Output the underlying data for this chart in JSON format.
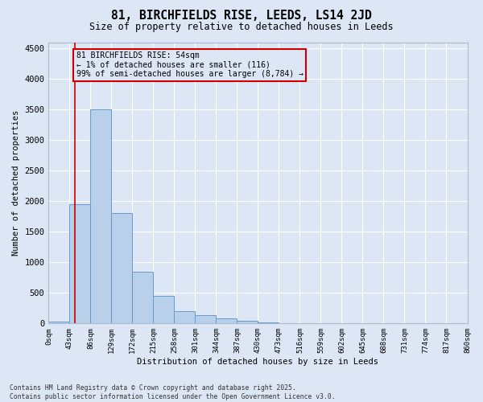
{
  "title_line1": "81, BIRCHFIELDS RISE, LEEDS, LS14 2JD",
  "title_line2": "Size of property relative to detached houses in Leeds",
  "xlabel": "Distribution of detached houses by size in Leeds",
  "ylabel": "Number of detached properties",
  "bar_color": "#b8d0ea",
  "bar_edge_color": "#6699cc",
  "background_color": "#dce6f5",
  "grid_color": "#ffffff",
  "annotation_box_color": "#cc0000",
  "annotation_line_color": "#cc0000",
  "property_line_x": 54,
  "annotation_text_line1": "81 BIRCHFIELDS RISE: 54sqm",
  "annotation_text_line2": "← 1% of detached houses are smaller (116)",
  "annotation_text_line3": "99% of semi-detached houses are larger (8,784) →",
  "footer_line1": "Contains HM Land Registry data © Crown copyright and database right 2025.",
  "footer_line2": "Contains public sector information licensed under the Open Government Licence v3.0.",
  "bin_edges": [
    0,
    43,
    86,
    129,
    172,
    215,
    258,
    301,
    344,
    387,
    430,
    473,
    516,
    559,
    602,
    645,
    688,
    731,
    774,
    817,
    860
  ],
  "bin_labels": [
    "0sqm",
    "43sqm",
    "86sqm",
    "129sqm",
    "172sqm",
    "215sqm",
    "258sqm",
    "301sqm",
    "344sqm",
    "387sqm",
    "430sqm",
    "473sqm",
    "516sqm",
    "559sqm",
    "602sqm",
    "645sqm",
    "688sqm",
    "731sqm",
    "774sqm",
    "817sqm",
    "860sqm"
  ],
  "bar_heights": [
    25,
    1950,
    3500,
    1800,
    850,
    450,
    200,
    130,
    80,
    50,
    15,
    8,
    3,
    1,
    0,
    0,
    0,
    0,
    0,
    0
  ],
  "ylim": [
    0,
    4600
  ],
  "yticks": [
    0,
    500,
    1000,
    1500,
    2000,
    2500,
    3000,
    3500,
    4000,
    4500
  ]
}
